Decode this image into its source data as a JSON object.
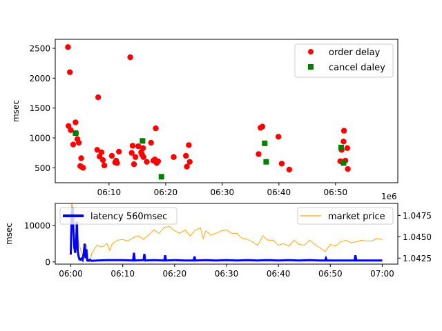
{
  "chart_data": [
    {
      "type": "scatter",
      "ylabel": "msec",
      "xlabel": "",
      "xlim": [
        "06:00:30",
        "07:01:00"
      ],
      "ylim": [
        250,
        2650
      ],
      "x_ticks": [
        "06:10",
        "06:20",
        "06:30",
        "06:40",
        "06:50"
      ],
      "y_ticks": [
        500,
        1000,
        1500,
        2000,
        2500
      ],
      "legend_position": "top-right",
      "series": [
        {
          "name": "order delay",
          "marker": "circle",
          "color": "#ff0000",
          "points": [
            [
              "06:02:45",
              2520
            ],
            [
              "06:02:50",
              1200
            ],
            [
              "06:03:05",
              2100
            ],
            [
              "06:03:15",
              1130
            ],
            [
              "06:03:40",
              890
            ],
            [
              "06:04:05",
              1260
            ],
            [
              "06:04:10",
              1080
            ],
            [
              "06:04:25",
              980
            ],
            [
              "06:04:40",
              920
            ],
            [
              "06:04:55",
              530
            ],
            [
              "06:05:05",
              660
            ],
            [
              "06:05:15",
              510
            ],
            [
              "06:05:25",
              500
            ],
            [
              "06:07:55",
              800
            ],
            [
              "06:08:05",
              1680
            ],
            [
              "06:08:20",
              690
            ],
            [
              "06:08:40",
              760
            ],
            [
              "06:08:55",
              630
            ],
            [
              "06:09:10",
              540
            ],
            [
              "06:10:30",
              700
            ],
            [
              "06:11:05",
              590
            ],
            [
              "06:11:15",
              620
            ],
            [
              "06:11:25",
              580
            ],
            [
              "06:11:45",
              770
            ],
            [
              "06:13:45",
              2350
            ],
            [
              "06:14:00",
              750
            ],
            [
              "06:14:10",
              870
            ],
            [
              "06:14:25",
              560
            ],
            [
              "06:14:40",
              680
            ],
            [
              "06:15:10",
              860
            ],
            [
              "06:15:40",
              760
            ],
            [
              "06:15:50",
              720
            ],
            [
              "06:16:00",
              830
            ],
            [
              "06:16:05",
              680
            ],
            [
              "06:16:40",
              600
            ],
            [
              "06:17:25",
              920
            ],
            [
              "06:17:50",
              620
            ],
            [
              "06:18:05",
              640
            ],
            [
              "06:18:15",
              1160
            ],
            [
              "06:18:25",
              580
            ],
            [
              "06:18:40",
              610
            ],
            [
              "06:21:25",
              680
            ],
            [
              "06:23:35",
              700
            ],
            [
              "06:23:45",
              520
            ],
            [
              "06:24:05",
              880
            ],
            [
              "06:24:15",
              600
            ],
            [
              "06:36:25",
              730
            ],
            [
              "06:36:45",
              1170
            ],
            [
              "06:37:05",
              1190
            ],
            [
              "06:39:55",
              1020
            ],
            [
              "06:40:30",
              570
            ],
            [
              "06:41:50",
              470
            ],
            [
              "06:50:50",
              610
            ],
            [
              "06:51:05",
              800
            ],
            [
              "06:51:15",
              600
            ],
            [
              "06:51:25",
              940
            ],
            [
              "06:51:30",
              1120
            ],
            [
              "06:51:45",
              620
            ],
            [
              "06:52:05",
              830
            ],
            [
              "06:52:10",
              480
            ]
          ]
        },
        {
          "name": "cancel daley",
          "marker": "square",
          "color": "#008000",
          "points": [
            [
              "06:04:05",
              1080
            ],
            [
              "06:15:55",
              950
            ],
            [
              "06:19:15",
              350
            ],
            [
              "06:37:30",
              910
            ],
            [
              "06:37:45",
              600
            ],
            [
              "06:51:00",
              840
            ],
            [
              "06:51:25",
              580
            ]
          ]
        }
      ]
    },
    {
      "type": "line",
      "ylabel": "msec",
      "xlabel": "",
      "xlim": [
        "05:57:00",
        "07:03:00"
      ],
      "ylim": [
        -600,
        16000
      ],
      "y_ticks": [
        0,
        10000
      ],
      "x_ticks": [
        "06:00",
        "06:10",
        "06:20",
        "06:30",
        "06:40",
        "06:50",
        "07:00"
      ],
      "secondary_axis": {
        "offset_label": "1e6",
        "ylim": [
          1.0418,
          1.0489
        ],
        "ticks": [
          "1.0425",
          "1.0450",
          "1.0475"
        ]
      },
      "legends": [
        {
          "position": "top-left",
          "entries": [
            "latency 560msec"
          ]
        },
        {
          "position": "top-right",
          "entries": [
            "market price"
          ]
        }
      ],
      "series": [
        {
          "name": "latency 560msec",
          "axis": "left",
          "color": "#0000ff",
          "x": [
            "06:00:00",
            "06:00:10",
            "06:00:20",
            "06:00:30",
            "06:00:40",
            "06:00:50",
            "06:01:00",
            "06:01:10",
            "06:01:20",
            "06:01:30",
            "06:01:40",
            "06:01:50",
            "06:02:00",
            "06:02:15",
            "06:02:30",
            "06:02:40",
            "06:02:50",
            "06:03:00",
            "06:03:10",
            "06:03:20",
            "06:03:40",
            "06:04:00",
            "06:05:00",
            "06:07:00",
            "06:10:00",
            "06:12:00",
            "06:12:10",
            "06:12:20",
            "06:14:00",
            "06:14:10",
            "06:14:20",
            "06:16:00",
            "06:18:00",
            "06:18:10",
            "06:18:20",
            "06:20:00",
            "06:22:00",
            "06:23:40",
            "06:23:50",
            "06:24:00",
            "06:26:00",
            "06:28:00",
            "06:30:00",
            "06:32:00",
            "06:34:00",
            "06:36:00",
            "06:38:00",
            "06:40:00",
            "06:42:00",
            "06:44:00",
            "06:46:00",
            "06:48:00",
            "06:49:00",
            "06:49:10",
            "06:49:20",
            "06:52:00",
            "06:54:40",
            "06:54:50",
            "06:55:00",
            "06:58:00",
            "07:00:00"
          ],
          "values": [
            2000,
            13000,
            15000,
            9000,
            4000,
            2500,
            5000,
            11000,
            3000,
            1500,
            700,
            600,
            900,
            500,
            2500,
            5000,
            1000,
            3500,
            400,
            300,
            600,
            300,
            400,
            500,
            500,
            400,
            2500,
            400,
            500,
            2200,
            400,
            500,
            400,
            1800,
            400,
            500,
            400,
            400,
            1500,
            400,
            500,
            400,
            500,
            400,
            500,
            400,
            500,
            400,
            500,
            400,
            500,
            400,
            400,
            1000,
            400,
            400,
            400,
            1800,
            400,
            400,
            400
          ]
        },
        {
          "name": "market price",
          "axis": "right",
          "color": "#ffa500",
          "x": [
            "06:00:00",
            "06:00:10",
            "06:00:20",
            "06:00:30",
            "06:00:45",
            "06:01:00",
            "06:01:20",
            "06:01:40",
            "06:02:00",
            "06:02:20",
            "06:02:40",
            "06:03:00",
            "06:03:10",
            "06:03:20",
            "06:03:40",
            "06:04:00",
            "06:05:00",
            "06:06:00",
            "06:07:00",
            "06:07:30",
            "06:08:00",
            "06:09:00",
            "06:10:00",
            "06:11:00",
            "06:12:00",
            "06:13:00",
            "06:14:00",
            "06:15:00",
            "06:16:00",
            "06:17:00",
            "06:18:00",
            "06:19:00",
            "06:20:00",
            "06:21:00",
            "06:22:00",
            "06:23:00",
            "06:24:00",
            "06:25:00",
            "06:25:30",
            "06:26:00",
            "06:27:00",
            "06:28:00",
            "06:29:00",
            "06:30:00",
            "06:31:00",
            "06:32:00",
            "06:33:00",
            "06:34:00",
            "06:35:00",
            "06:36:00",
            "06:37:00",
            "06:38:00",
            "06:39:00",
            "06:40:00",
            "06:41:00",
            "06:42:00",
            "06:43:00",
            "06:44:00",
            "06:45:00",
            "06:46:00",
            "06:47:00",
            "06:48:00",
            "06:49:00",
            "06:50:00",
            "06:51:00",
            "06:52:00",
            "06:53:00",
            "06:54:00",
            "06:55:00",
            "06:56:00",
            "06:57:00",
            "06:58:00",
            "06:59:00",
            "07:00:00"
          ],
          "values": [
            1.0455,
            1.0489,
            1.0487,
            1.0478,
            1.0472,
            1.046,
            1.0448,
            1.044,
            1.0432,
            1.0428,
            1.0436,
            1.0441,
            1.0432,
            1.0424,
            1.042,
            1.043,
            1.044,
            1.0438,
            1.0442,
            1.0434,
            1.0442,
            1.0446,
            1.0447,
            1.0445,
            1.0449,
            1.0451,
            1.0447,
            1.0452,
            1.0458,
            1.0454,
            1.0461,
            1.0462,
            1.0457,
            1.0454,
            1.0458,
            1.0451,
            1.0458,
            1.046,
            1.0448,
            1.0457,
            1.0452,
            1.0454,
            1.0457,
            1.0458,
            1.0454,
            1.0454,
            1.0448,
            1.0447,
            1.0444,
            1.044,
            1.0451,
            1.0446,
            1.0446,
            1.044,
            1.0442,
            1.0439,
            1.0446,
            1.0441,
            1.044,
            1.0446,
            1.0441,
            1.0437,
            1.0433,
            1.0441,
            1.0439,
            1.0444,
            1.0446,
            1.0443,
            1.0444,
            1.0446,
            1.0445,
            1.0445,
            1.0448,
            1.0447
          ]
        }
      ]
    }
  ]
}
